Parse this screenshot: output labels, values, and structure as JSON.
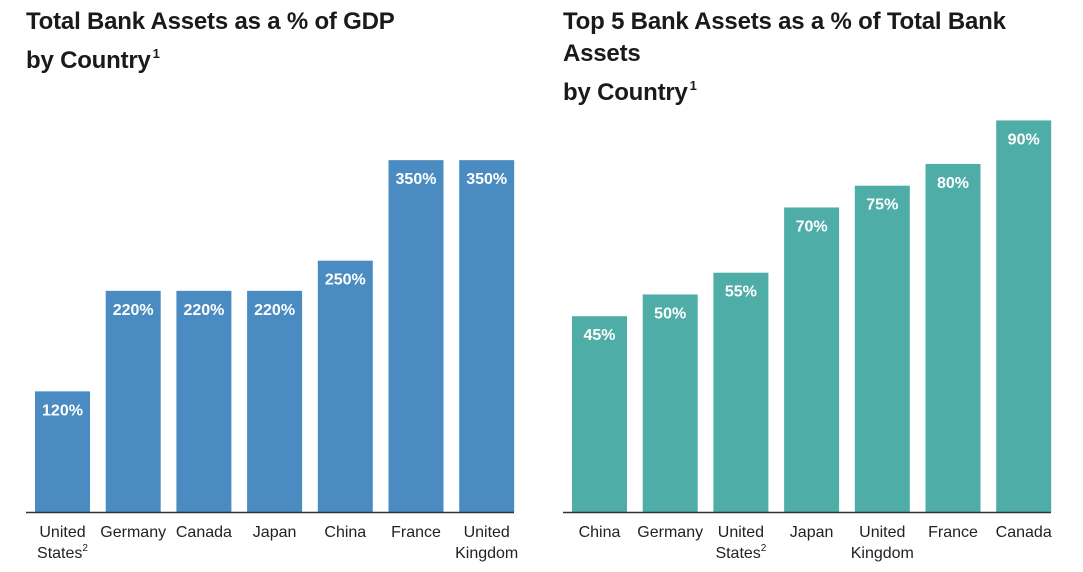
{
  "chart_data": [
    {
      "type": "bar",
      "title": "Total Bank Assets as a % of GDP by Country",
      "title_line1": "Total Bank Assets as a % of GDP",
      "title_line2": "by Country",
      "title_footnote": "1",
      "categories": [
        "United States",
        "Germany",
        "Canada",
        "Japan",
        "China",
        "France",
        "United Kingdom"
      ],
      "category_footnotes": [
        "2",
        "",
        "",
        "",
        "",
        "",
        ""
      ],
      "values": [
        120,
        220,
        220,
        220,
        250,
        350,
        350
      ],
      "data_labels": [
        "120%",
        "220%",
        "220%",
        "220%",
        "250%",
        "350%",
        "350%"
      ],
      "ylim": [
        0,
        380
      ],
      "color": "#4a8bc2",
      "grid": false
    },
    {
      "type": "bar",
      "title": "Top 5 Bank Assets as a % of Total Bank Assets by Country",
      "title_line1": "Top 5 Bank Assets as a % of Total Bank Assets",
      "title_line2": "by Country",
      "title_footnote": "1",
      "categories": [
        "China",
        "Germany",
        "United States",
        "Japan",
        "United Kingdom",
        "France",
        "Canada"
      ],
      "category_footnotes": [
        "",
        "",
        "2",
        "",
        "",
        "",
        ""
      ],
      "values": [
        45,
        50,
        55,
        70,
        75,
        80,
        90
      ],
      "data_labels": [
        "45%",
        "50%",
        "55%",
        "70%",
        "75%",
        "80%",
        "90%"
      ],
      "ylim": [
        0,
        87.8
      ],
      "color": "#4fada8",
      "grid": false
    }
  ]
}
